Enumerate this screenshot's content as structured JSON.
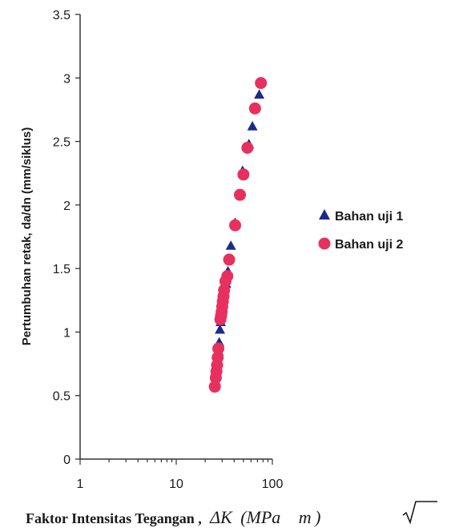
{
  "chart_data": {
    "type": "scatter",
    "xscale": "log",
    "xlim": [
      1,
      100
    ],
    "ylim": [
      0,
      3.5
    ],
    "x_ticks": [
      "1",
      "10",
      "100"
    ],
    "y_ticks": [
      "0",
      "0.5",
      "1",
      "1.5",
      "2",
      "2.5",
      "3",
      "3.5"
    ],
    "ylabel": "Pertumbuhan retak, da/dn (mm/siklus)",
    "xlabel_text": "Faktor Intensitas Tegangan ,",
    "xlabel_math_delta": "ΔK",
    "xlabel_math_open": "(MPa",
    "xlabel_math_m": "m",
    "xlabel_math_close": ")",
    "grid": false,
    "legend": "right",
    "series": [
      {
        "name": "Bahan uji 1",
        "marker": "triangle",
        "color": "#1c2a8c",
        "points": [
          [
            25.5,
            0.62
          ],
          [
            26,
            0.68
          ],
          [
            26.5,
            0.72
          ],
          [
            27,
            0.78
          ],
          [
            27.5,
            0.85
          ],
          [
            28,
            0.92
          ],
          [
            28.5,
            1.02
          ],
          [
            29,
            1.08
          ],
          [
            29.5,
            1.15
          ],
          [
            30.5,
            1.22
          ],
          [
            31.5,
            1.3
          ],
          [
            33,
            1.38
          ],
          [
            34.5,
            1.48
          ],
          [
            37,
            1.68
          ],
          [
            41,
            1.86
          ],
          [
            49,
            2.27
          ],
          [
            57,
            2.48
          ],
          [
            62,
            2.62
          ],
          [
            73,
            2.87
          ]
        ]
      },
      {
        "name": "Bahan uji 2",
        "marker": "circle",
        "color": "#e8305f",
        "points": [
          [
            25.2,
            0.57
          ],
          [
            25.8,
            0.64
          ],
          [
            26.2,
            0.69
          ],
          [
            26.6,
            0.74
          ],
          [
            27,
            0.8
          ],
          [
            27.4,
            0.87
          ],
          [
            28.8,
            1.1
          ],
          [
            29.3,
            1.13
          ],
          [
            29.7,
            1.16
          ],
          [
            30.1,
            1.2
          ],
          [
            30.5,
            1.24
          ],
          [
            31,
            1.28
          ],
          [
            31.5,
            1.33
          ],
          [
            32.5,
            1.4
          ],
          [
            34,
            1.44
          ],
          [
            35.5,
            1.57
          ],
          [
            41,
            1.84
          ],
          [
            46,
            2.08
          ],
          [
            50,
            2.24
          ],
          [
            55,
            2.45
          ],
          [
            66,
            2.76
          ],
          [
            76,
            2.96
          ]
        ]
      }
    ]
  }
}
